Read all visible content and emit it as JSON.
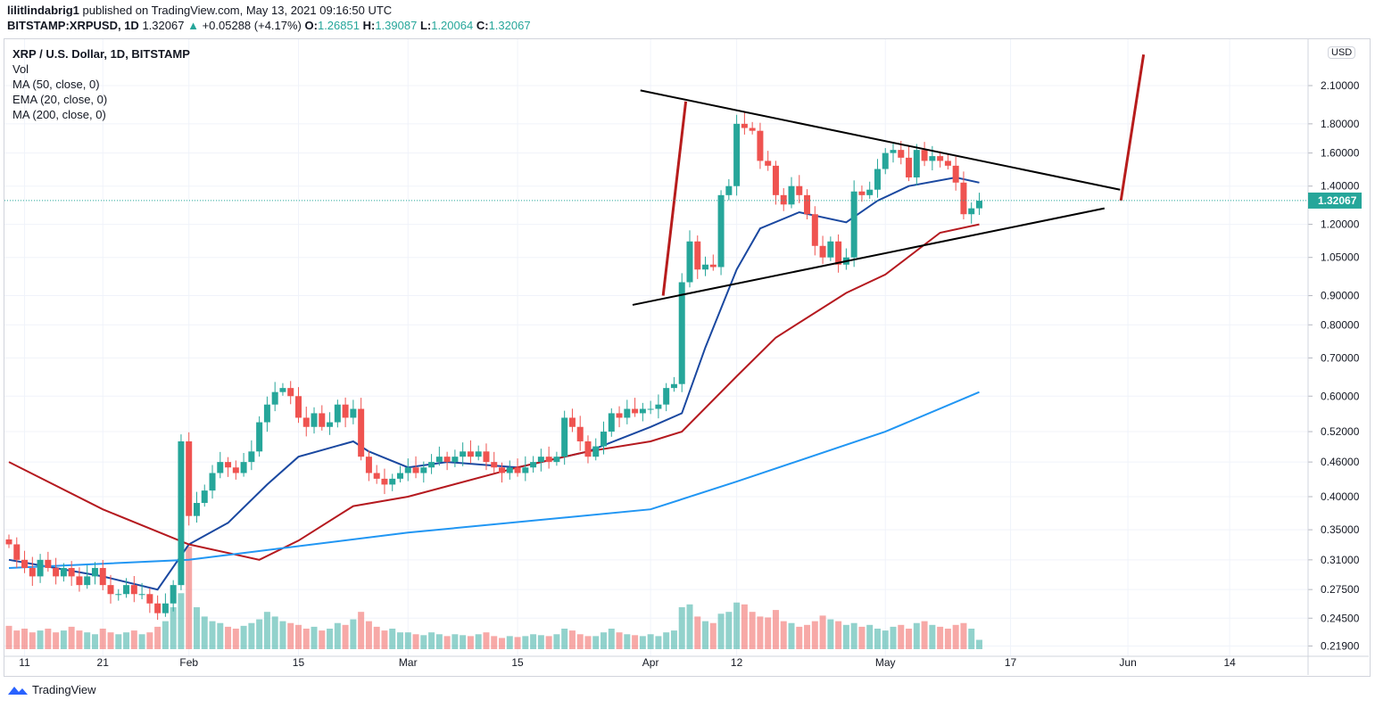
{
  "header": {
    "author": "lilitlindabrig1",
    "published": "published on TradingView.com, May 13, 2021 09:16:50 UTC",
    "symbol": "BITSTAMP:XRPUSD, 1D",
    "last": "1.32067",
    "change": "+0.05288 (+4.17%)",
    "o_label": "O:",
    "o": "1.26851",
    "h_label": "H:",
    "h": "1.39087",
    "l_label": "L:",
    "l": "1.20064",
    "c_label": "C:",
    "c": "1.32067"
  },
  "legend": [
    "XRP / U.S. Dollar, 1D, BITSTAMP",
    "Vol",
    "MA (50, close, 0)",
    "EMA (20, close, 0)",
    "MA (200, close, 0)"
  ],
  "currency": "USD",
  "footer": {
    "brand": "TradingView"
  },
  "colors": {
    "up": "#26a69a",
    "down": "#ef5350",
    "ema20": "#1a48a0",
    "ma50": "#b5191f",
    "ma200": "#2196f3",
    "trendline": "#000000",
    "arrow": "#b71c1c"
  },
  "chart_data": {
    "type": "candlestick",
    "y_scale": "log",
    "start_date": "2021-01-09",
    "ylim": [
      0.219,
      2.3
    ],
    "y_ticks": [
      "2.10000",
      "1.80000",
      "1.60000",
      "1.40000",
      "1.20000",
      "1.05000",
      "0.90000",
      "0.80000",
      "0.70000",
      "0.60000",
      "0.52000",
      "0.46000",
      "0.40000",
      "0.35000",
      "0.31000",
      "0.27500",
      "0.24500",
      "0.21900"
    ],
    "last_price_label": "1.32067",
    "x_ticks": [
      {
        "label": "11",
        "date": "2021-01-11"
      },
      {
        "label": "21",
        "date": "2021-01-21"
      },
      {
        "label": "Feb",
        "date": "2021-02-01"
      },
      {
        "label": "15",
        "date": "2021-02-15"
      },
      {
        "label": "Mar",
        "date": "2021-03-01"
      },
      {
        "label": "15",
        "date": "2021-03-15"
      },
      {
        "label": "Apr",
        "date": "2021-04-01"
      },
      {
        "label": "12",
        "date": "2021-04-12"
      },
      {
        "label": "May",
        "date": "2021-05-01"
      },
      {
        "label": "17",
        "date": "2021-05-17"
      },
      {
        "label": "Jun",
        "date": "2021-06-01"
      },
      {
        "label": "14",
        "date": "2021-06-14"
      }
    ],
    "closes": [
      0.33,
      0.31,
      0.3,
      0.29,
      0.31,
      0.3,
      0.29,
      0.3,
      0.29,
      0.28,
      0.29,
      0.3,
      0.28,
      0.27,
      0.27,
      0.28,
      0.27,
      0.27,
      0.26,
      0.25,
      0.26,
      0.28,
      0.5,
      0.37,
      0.39,
      0.41,
      0.44,
      0.46,
      0.45,
      0.44,
      0.46,
      0.48,
      0.54,
      0.58,
      0.61,
      0.62,
      0.6,
      0.55,
      0.53,
      0.56,
      0.53,
      0.54,
      0.58,
      0.55,
      0.57,
      0.47,
      0.44,
      0.43,
      0.42,
      0.43,
      0.44,
      0.45,
      0.44,
      0.45,
      0.46,
      0.47,
      0.46,
      0.47,
      0.48,
      0.47,
      0.48,
      0.46,
      0.45,
      0.44,
      0.45,
      0.44,
      0.45,
      0.46,
      0.47,
      0.46,
      0.47,
      0.55,
      0.53,
      0.5,
      0.47,
      0.49,
      0.52,
      0.56,
      0.55,
      0.57,
      0.56,
      0.57,
      0.57,
      0.58,
      0.62,
      0.63,
      0.95,
      1.12,
      1.0,
      1.02,
      1.01,
      1.35,
      1.4,
      1.8,
      1.77,
      1.75,
      1.55,
      1.52,
      1.35,
      1.3,
      1.4,
      1.35,
      1.25,
      1.1,
      1.05,
      1.12,
      1.02,
      1.05,
      1.37,
      1.35,
      1.38,
      1.5,
      1.6,
      1.62,
      1.57,
      1.45,
      1.62,
      1.55,
      1.58,
      1.55,
      1.52,
      1.42,
      1.25,
      1.28,
      1.32
    ],
    "volumes": [
      25,
      20,
      22,
      18,
      20,
      22,
      18,
      20,
      24,
      20,
      18,
      16,
      22,
      18,
      16,
      18,
      20,
      16,
      18,
      24,
      30,
      45,
      60,
      110,
      45,
      35,
      30,
      28,
      24,
      22,
      25,
      28,
      32,
      40,
      35,
      30,
      28,
      26,
      22,
      24,
      20,
      22,
      28,
      26,
      32,
      40,
      30,
      24,
      20,
      22,
      18,
      18,
      16,
      15,
      18,
      16,
      14,
      16,
      15,
      14,
      16,
      18,
      14,
      12,
      14,
      13,
      14,
      16,
      15,
      14,
      16,
      22,
      20,
      16,
      14,
      14,
      18,
      22,
      18,
      16,
      15,
      14,
      16,
      14,
      18,
      20,
      45,
      48,
      35,
      30,
      28,
      38,
      40,
      50,
      48,
      40,
      35,
      34,
      42,
      30,
      28,
      24,
      26,
      30,
      36,
      32,
      30,
      26,
      28,
      24,
      26,
      22,
      20,
      24,
      26,
      22,
      28,
      30,
      26,
      24,
      22,
      26,
      28,
      22,
      10
    ],
    "series": [
      {
        "name": "EMA (20, close, 0)",
        "color": "#1a48a0",
        "points": [
          [
            "2021-01-09",
            0.31
          ],
          [
            "2021-01-21",
            0.29
          ],
          [
            "2021-01-28",
            0.275
          ],
          [
            "2021-02-01",
            0.33
          ],
          [
            "2021-02-06",
            0.36
          ],
          [
            "2021-02-11",
            0.42
          ],
          [
            "2021-02-15",
            0.47
          ],
          [
            "2021-02-22",
            0.5
          ],
          [
            "2021-02-24",
            0.48
          ],
          [
            "2021-03-01",
            0.45
          ],
          [
            "2021-03-06",
            0.46
          ],
          [
            "2021-03-15",
            0.45
          ],
          [
            "2021-03-24",
            0.48
          ],
          [
            "2021-04-01",
            0.53
          ],
          [
            "2021-04-05",
            0.56
          ],
          [
            "2021-04-08",
            0.73
          ],
          [
            "2021-04-12",
            1.0
          ],
          [
            "2021-04-15",
            1.18
          ],
          [
            "2021-04-20",
            1.26
          ],
          [
            "2021-04-26",
            1.21
          ],
          [
            "2021-04-30",
            1.32
          ],
          [
            "2021-05-04",
            1.4
          ],
          [
            "2021-05-10",
            1.45
          ],
          [
            "2021-05-13",
            1.42
          ]
        ]
      },
      {
        "name": "MA (50, close, 0)",
        "color": "#b5191f",
        "points": [
          [
            "2021-01-09",
            0.46
          ],
          [
            "2021-01-21",
            0.38
          ],
          [
            "2021-02-01",
            0.33
          ],
          [
            "2021-02-10",
            0.31
          ],
          [
            "2021-02-15",
            0.335
          ],
          [
            "2021-02-22",
            0.385
          ],
          [
            "2021-03-01",
            0.4
          ],
          [
            "2021-03-15",
            0.45
          ],
          [
            "2021-03-24",
            0.48
          ],
          [
            "2021-04-01",
            0.5
          ],
          [
            "2021-04-05",
            0.52
          ],
          [
            "2021-04-12",
            0.65
          ],
          [
            "2021-04-17",
            0.76
          ],
          [
            "2021-04-26",
            0.91
          ],
          [
            "2021-05-01",
            0.98
          ],
          [
            "2021-05-08",
            1.16
          ],
          [
            "2021-05-13",
            1.2
          ]
        ]
      },
      {
        "name": "MA (200, close, 0)",
        "color": "#2196f3",
        "points": [
          [
            "2021-01-09",
            0.3
          ],
          [
            "2021-02-01",
            0.31
          ],
          [
            "2021-03-01",
            0.346
          ],
          [
            "2021-04-01",
            0.38
          ],
          [
            "2021-04-12",
            0.425
          ],
          [
            "2021-05-01",
            0.52
          ],
          [
            "2021-05-13",
            0.61
          ]
        ]
      }
    ],
    "drawings": [
      {
        "kind": "trendline",
        "color": "#000000",
        "from": [
          "2021-03-30.7",
          2.06
        ],
        "to": [
          "2021-05-31",
          1.38
        ]
      },
      {
        "kind": "trendline",
        "color": "#000000",
        "from": [
          "2021-03-29.7",
          0.867
        ],
        "to": [
          "2021-05-29",
          1.28
        ]
      },
      {
        "kind": "pole",
        "color": "#b71c1c",
        "from": [
          "2021-04-02.6",
          0.9
        ],
        "to": [
          "2021-04-05.5",
          1.97
        ]
      },
      {
        "kind": "target",
        "color": "#b71c1c",
        "from": [
          "2021-05-31.1",
          1.32
        ],
        "to": [
          "2021-06-03",
          2.38
        ]
      }
    ]
  }
}
